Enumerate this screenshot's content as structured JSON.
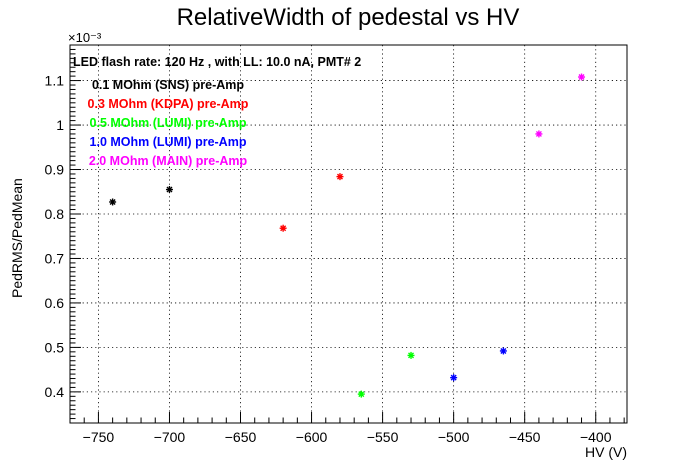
{
  "chart_data": {
    "type": "scatter",
    "title": "RelativeWidth of pedestal vs HV",
    "xlabel": "HV (V)",
    "ylabel": "PedRMS/PedMean",
    "y_exponent_label": "×10⁻³",
    "info_text": "LED flash rate: 120 Hz , with LL: 10.0 nA, PMT# 2",
    "xlim": [
      -770,
      -378
    ],
    "ylim": [
      0.33,
      1.18
    ],
    "xticks": [
      -750,
      -700,
      -650,
      -600,
      -550,
      -500,
      -450,
      -400
    ],
    "xtick_labels": [
      "−750",
      "−700",
      "−650",
      "−600",
      "−550",
      "−500",
      "−450",
      "−400"
    ],
    "yticks": [
      0.4,
      0.5,
      0.6,
      0.7,
      0.8,
      0.9,
      1.0,
      1.1
    ],
    "ytick_labels": [
      "0.4",
      "0.5",
      "0.6",
      "0.7",
      "0.8",
      "0.9",
      "1",
      "1.1"
    ],
    "grid": true,
    "legend_position": "top-left",
    "series": [
      {
        "name": "0.1 MOhm (SNS) pre-Amp",
        "color": "#000000",
        "points": [
          [
            -740,
            0.827
          ],
          [
            -700,
            0.855
          ]
        ]
      },
      {
        "name": "0.3 MOhm (KDPA) pre-Amp",
        "color": "#ff0000",
        "points": [
          [
            -620,
            0.768
          ],
          [
            -580,
            0.884
          ]
        ]
      },
      {
        "name": "0.5 MOhm (LUMI) pre-Amp",
        "color": "#00ff00",
        "points": [
          [
            -565,
            0.395
          ],
          [
            -530,
            0.482
          ]
        ]
      },
      {
        "name": "1.0 MOhm (LUMI) pre-Amp",
        "color": "#0000ff",
        "points": [
          [
            -500,
            0.432
          ],
          [
            -465,
            0.492
          ]
        ]
      },
      {
        "name": "2.0 MOhm (MAIN) pre-Amp",
        "color": "#ff00ff",
        "points": [
          [
            -440,
            0.98
          ],
          [
            -410,
            1.108
          ]
        ]
      }
    ]
  }
}
